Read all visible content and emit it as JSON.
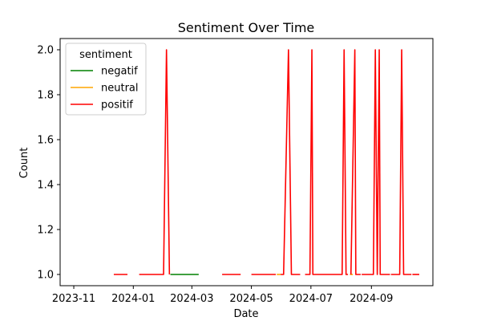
{
  "chart_data": {
    "type": "line",
    "title": "Sentiment Over Time",
    "xlabel": "Date",
    "ylabel": "Count",
    "xlim": [
      "2023-10-18",
      "2024-11-03"
    ],
    "ylim": [
      0.95,
      2.05
    ],
    "x_ticks": [
      "2023-11-01",
      "2024-01-01",
      "2024-03-01",
      "2024-05-01",
      "2024-07-01",
      "2024-09-01"
    ],
    "x_tick_labels": [
      "2023-11",
      "2024-01",
      "2024-03",
      "2024-05",
      "2024-07",
      "2024-09"
    ],
    "y_ticks": [
      1.0,
      1.2,
      1.4,
      1.6,
      1.8,
      2.0
    ],
    "y_tick_labels": [
      "1.0",
      "1.2",
      "1.4",
      "1.6",
      "1.8",
      "2.0"
    ],
    "grid": false,
    "legend": {
      "title": "sentiment",
      "placement": "top-left"
    },
    "series": [
      {
        "name": "negatif",
        "color": "#008000",
        "segments": [
          [
            [
              "2024-02-08",
              1
            ],
            [
              "2024-03-08",
              1
            ]
          ]
        ]
      },
      {
        "name": "neutral",
        "color": "#ffa500",
        "segments": [
          [
            [
              "2024-05-27",
              1
            ],
            [
              "2024-05-31",
              1
            ]
          ],
          [
            [
              "2024-08-10",
              1
            ],
            [
              "2024-08-13",
              1
            ]
          ]
        ]
      },
      {
        "name": "positif",
        "color": "#ff0000",
        "segments": [
          [
            [
              "2023-12-12",
              1
            ],
            [
              "2023-12-26",
              1
            ]
          ],
          [
            [
              "2024-01-07",
              1
            ],
            [
              "2024-02-01",
              1
            ],
            [
              "2024-02-04",
              2
            ],
            [
              "2024-02-07",
              1
            ]
          ],
          [
            [
              "2024-04-01",
              1
            ],
            [
              "2024-04-20",
              1
            ]
          ],
          [
            [
              "2024-05-01",
              1
            ],
            [
              "2024-05-26",
              1
            ]
          ],
          [
            [
              "2024-05-31",
              1
            ],
            [
              "2024-06-03",
              1
            ],
            [
              "2024-06-08",
              2
            ],
            [
              "2024-06-11",
              1
            ],
            [
              "2024-06-20",
              1
            ]
          ],
          [
            [
              "2024-06-25",
              1
            ],
            [
              "2024-06-30",
              1
            ],
            [
              "2024-07-02",
              2
            ],
            [
              "2024-07-03",
              1
            ],
            [
              "2024-08-02",
              1
            ],
            [
              "2024-08-04",
              2
            ],
            [
              "2024-08-06",
              1
            ],
            [
              "2024-08-08",
              1
            ]
          ],
          [
            [
              "2024-08-11",
              1
            ],
            [
              "2024-08-15",
              2
            ],
            [
              "2024-08-16",
              1
            ],
            [
              "2024-08-21",
              1
            ]
          ],
          [
            [
              "2024-08-22",
              1
            ],
            [
              "2024-09-03",
              1
            ],
            [
              "2024-09-05",
              2
            ],
            [
              "2024-09-07",
              1
            ],
            [
              "2024-09-09",
              2
            ],
            [
              "2024-09-10",
              1
            ],
            [
              "2024-09-20",
              1
            ]
          ],
          [
            [
              "2024-09-21",
              1
            ],
            [
              "2024-09-30",
              1
            ],
            [
              "2024-10-02",
              2
            ],
            [
              "2024-10-04",
              1
            ],
            [
              "2024-10-12",
              1
            ]
          ],
          [
            [
              "2024-10-13",
              1
            ],
            [
              "2024-10-20",
              1
            ]
          ]
        ]
      }
    ]
  }
}
